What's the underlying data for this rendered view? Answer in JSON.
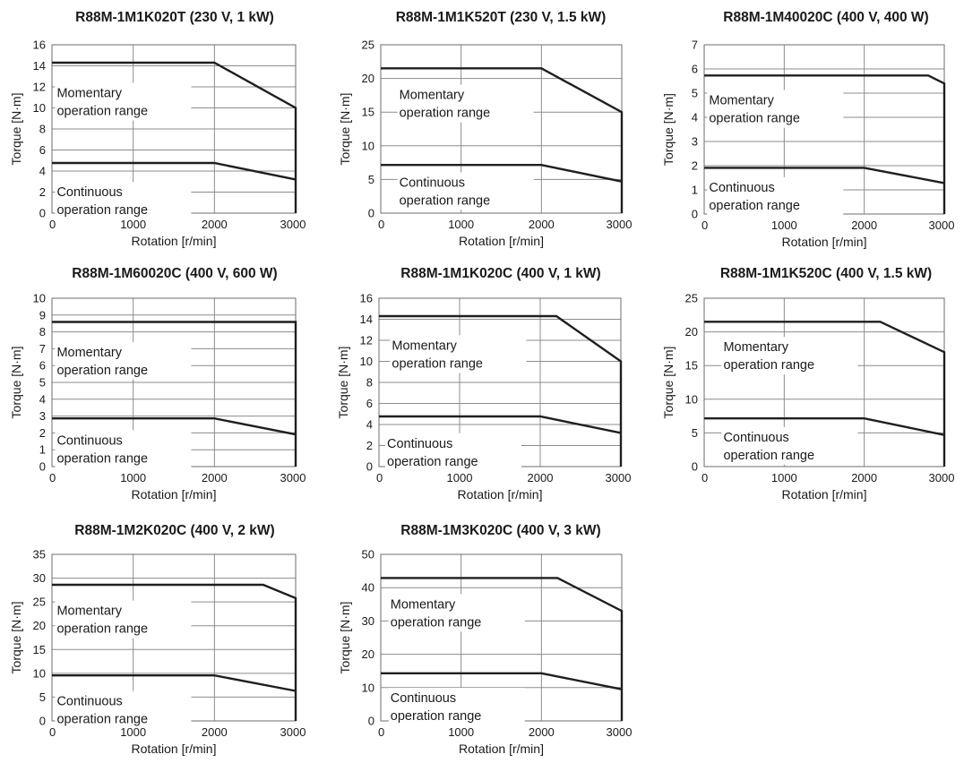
{
  "chart_data": [
    {
      "type": "line",
      "title": "R88M-1M1K020T (230 V, 1 kW)",
      "xlabel": "Rotation [r/min]",
      "ylabel": "Torque [N·m]",
      "xlim": [
        0,
        3000
      ],
      "ylim": [
        0,
        16
      ],
      "xticks": [
        0,
        1000,
        2000,
        3000
      ],
      "yticks": [
        0,
        2,
        4,
        6,
        8,
        10,
        12,
        14,
        16
      ],
      "grid": true,
      "series": [
        {
          "x": [
            0,
            2000,
            3000,
            3000
          ],
          "y": [
            14.3,
            14.3,
            10,
            0
          ]
        },
        {
          "x": [
            0,
            2000,
            3000
          ],
          "y": [
            4.77,
            4.77,
            3.2
          ]
        }
      ],
      "annotations": [
        {
          "lines": [
            "Momentary",
            "operation range"
          ],
          "x": 60,
          "y": 12.2
        },
        {
          "lines": [
            "Continuous",
            "operation range"
          ],
          "x": 60,
          "y": 2.8
        }
      ]
    },
    {
      "type": "line",
      "title": "R88M-1M1K520T (230 V, 1.5 kW)",
      "xlabel": "Rotation [r/min]",
      "ylabel": "Torque [N·m]",
      "xlim": [
        0,
        3000
      ],
      "ylim": [
        0,
        25
      ],
      "xticks": [
        0,
        1000,
        2000,
        3000
      ],
      "yticks": [
        0,
        5,
        10,
        15,
        20,
        25
      ],
      "grid": true,
      "series": [
        {
          "x": [
            0,
            2000,
            3000,
            3000
          ],
          "y": [
            21.5,
            21.5,
            15,
            0
          ]
        },
        {
          "x": [
            0,
            2000,
            3000
          ],
          "y": [
            7.16,
            7.16,
            4.7
          ]
        }
      ],
      "annotations": [
        {
          "lines": [
            "Momentary",
            "operation range"
          ],
          "x": 230,
          "y": 18.8
        },
        {
          "lines": [
            "Continuous",
            "operation range"
          ],
          "x": 230,
          "y": 5.8
        }
      ]
    },
    {
      "type": "line",
      "title": "R88M-1M40020C (400 V, 400 W)",
      "xlabel": "Rotation [r/min]",
      "ylabel": "Torque [N·m]",
      "xlim": [
        0,
        3000
      ],
      "ylim": [
        0,
        7
      ],
      "xticks": [
        0,
        1000,
        2000,
        3000
      ],
      "yticks": [
        0,
        1,
        2,
        3,
        4,
        5,
        6,
        7
      ],
      "grid": true,
      "series": [
        {
          "x": [
            0,
            2800,
            3000,
            3000
          ],
          "y": [
            5.73,
            5.73,
            5.4,
            0
          ]
        },
        {
          "x": [
            0,
            2000,
            3000
          ],
          "y": [
            1.91,
            1.91,
            1.28
          ]
        }
      ],
      "annotations": [
        {
          "lines": [
            "Momentary",
            "operation range"
          ],
          "x": 60,
          "y": 5.05
        },
        {
          "lines": [
            "Continuous",
            "operation range"
          ],
          "x": 60,
          "y": 1.45
        }
      ]
    },
    {
      "type": "line",
      "title": "R88M-1M60020C (400 V, 600 W)",
      "xlabel": "Rotation [r/min]",
      "ylabel": "Torque [N·m]",
      "xlim": [
        0,
        3000
      ],
      "ylim": [
        0,
        10
      ],
      "xticks": [
        0,
        1000,
        2000,
        3000
      ],
      "yticks": [
        0,
        1,
        2,
        3,
        4,
        5,
        6,
        7,
        8,
        9,
        10
      ],
      "grid": true,
      "series": [
        {
          "x": [
            0,
            3000,
            3000
          ],
          "y": [
            8.59,
            8.59,
            0
          ]
        },
        {
          "x": [
            0,
            2000,
            3000
          ],
          "y": [
            2.86,
            2.86,
            1.91
          ]
        }
      ],
      "annotations": [
        {
          "lines": [
            "Momentary",
            "operation range"
          ],
          "x": 60,
          "y": 7.3
        },
        {
          "lines": [
            "Continuous",
            "operation range"
          ],
          "x": 60,
          "y": 2.05
        }
      ]
    },
    {
      "type": "line",
      "title": "R88M-1M1K020C (400 V, 1 kW)",
      "xlabel": "Rotation [r/min]",
      "ylabel": "Torque [N·m]",
      "xlim": [
        0,
        3000
      ],
      "ylim": [
        0,
        16
      ],
      "xticks": [
        0,
        1000,
        2000,
        3000
      ],
      "yticks": [
        0,
        2,
        4,
        6,
        8,
        10,
        12,
        14,
        16
      ],
      "grid": true,
      "series": [
        {
          "x": [
            0,
            2200,
            3000,
            3000
          ],
          "y": [
            14.3,
            14.3,
            10,
            0
          ]
        },
        {
          "x": [
            0,
            2000,
            3000
          ],
          "y": [
            4.77,
            4.77,
            3.2
          ]
        }
      ],
      "annotations": [
        {
          "lines": [
            "Momentary",
            "operation range"
          ],
          "x": 160,
          "y": 12.3
        },
        {
          "lines": [
            "Continuous",
            "operation range"
          ],
          "x": 100,
          "y": 3.0
        }
      ]
    },
    {
      "type": "line",
      "title": "R88M-1M1K520C (400 V, 1.5 kW)",
      "xlabel": "Rotation [r/min]",
      "ylabel": "Torque [N·m]",
      "xlim": [
        0,
        3000
      ],
      "ylim": [
        0,
        25
      ],
      "xticks": [
        0,
        1000,
        2000,
        3000
      ],
      "yticks": [
        0,
        5,
        10,
        15,
        20,
        25
      ],
      "grid": true,
      "series": [
        {
          "x": [
            0,
            2200,
            3000,
            3000
          ],
          "y": [
            21.5,
            21.5,
            17,
            0
          ]
        },
        {
          "x": [
            0,
            2000,
            3000
          ],
          "y": [
            7.16,
            7.16,
            4.7
          ]
        }
      ],
      "annotations": [
        {
          "lines": [
            "Momentary",
            "operation range"
          ],
          "x": 240,
          "y": 19.0
        },
        {
          "lines": [
            "Continuous",
            "operation range"
          ],
          "x": 240,
          "y": 5.6
        }
      ]
    },
    {
      "type": "line",
      "title": "R88M-1M2K020C (400 V, 2 kW)",
      "xlabel": "Rotation [r/min]",
      "ylabel": "Torque [N·m]",
      "xlim": [
        0,
        3000
      ],
      "ylim": [
        0,
        35
      ],
      "xticks": [
        0,
        1000,
        2000,
        3000
      ],
      "yticks": [
        0,
        5,
        10,
        15,
        20,
        25,
        30,
        35
      ],
      "grid": true,
      "series": [
        {
          "x": [
            0,
            2600,
            3000,
            3000
          ],
          "y": [
            28.6,
            28.6,
            25.8,
            0
          ]
        },
        {
          "x": [
            0,
            2000,
            3000
          ],
          "y": [
            9.55,
            9.55,
            6.3
          ]
        }
      ],
      "annotations": [
        {
          "lines": [
            "Momentary",
            "operation range"
          ],
          "x": 60,
          "y": 24.9
        },
        {
          "lines": [
            "Continuous",
            "operation range"
          ],
          "x": 60,
          "y": 5.9
        }
      ]
    },
    {
      "type": "line",
      "title": "R88M-1M3K020C (400 V, 3 kW)",
      "xlabel": "Rotation [r/min]",
      "ylabel": "Torque [N·m]",
      "xlim": [
        0,
        3000
      ],
      "ylim": [
        0,
        50
      ],
      "xticks": [
        0,
        1000,
        2000,
        3000
      ],
      "yticks": [
        0,
        10,
        20,
        30,
        40,
        50
      ],
      "grid": true,
      "series": [
        {
          "x": [
            0,
            2200,
            3000,
            3000
          ],
          "y": [
            42.9,
            42.9,
            33,
            0
          ]
        },
        {
          "x": [
            0,
            2000,
            3000
          ],
          "y": [
            14.3,
            14.3,
            9.5
          ]
        }
      ],
      "annotations": [
        {
          "lines": [
            "Momentary",
            "operation range"
          ],
          "x": 120,
          "y": 37.5
        },
        {
          "lines": [
            "Continuous",
            "operation range"
          ],
          "x": 120,
          "y": 9.4
        }
      ]
    }
  ]
}
